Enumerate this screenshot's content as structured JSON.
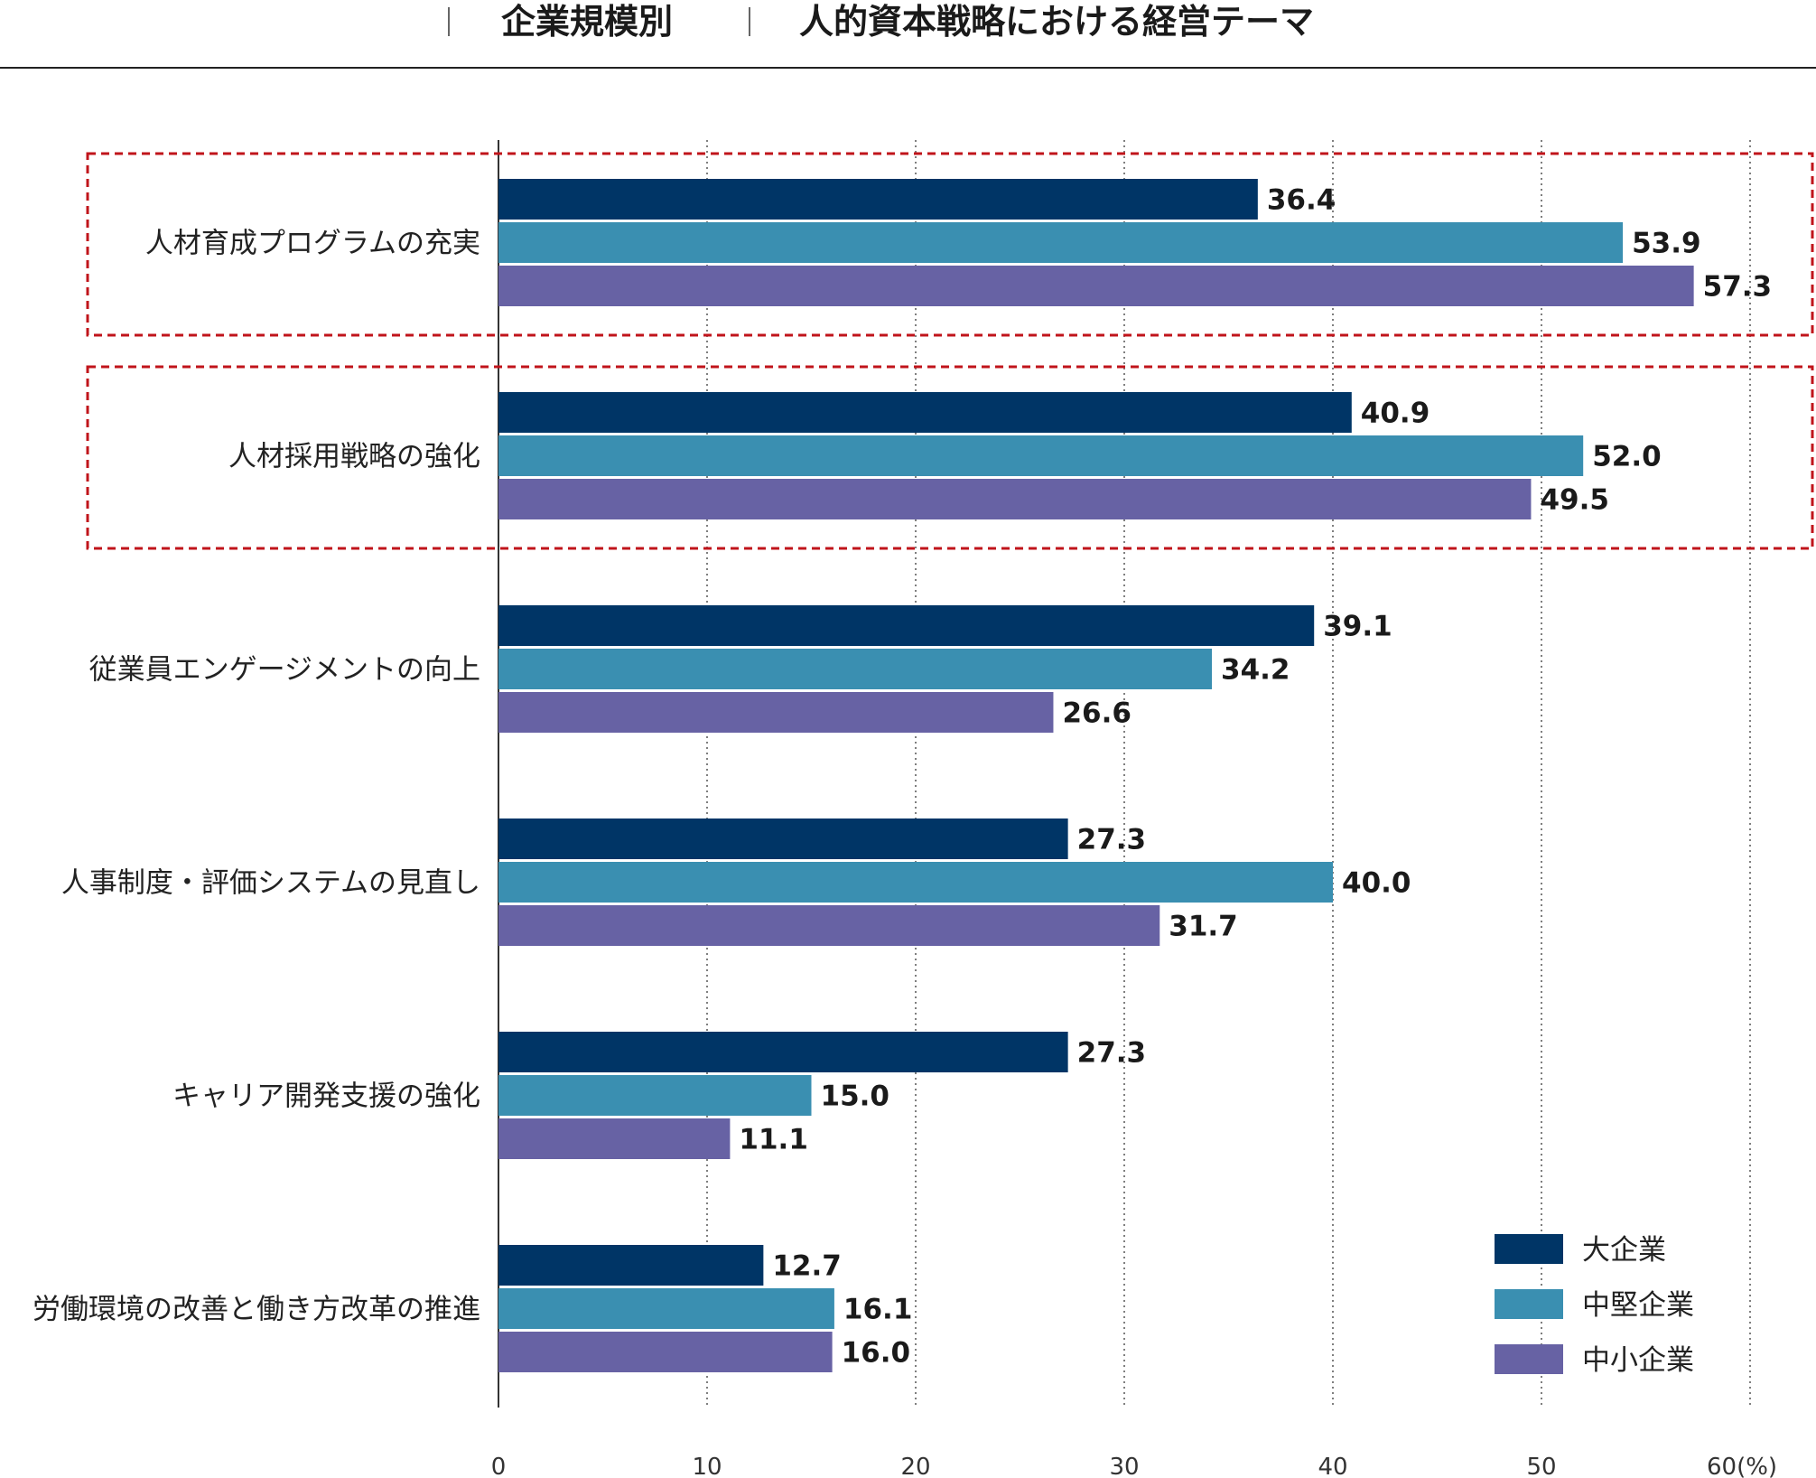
{
  "header": {
    "category_title": "企業規模別",
    "main_title": "人的資本戦略における経営テーマ"
  },
  "chart_data": {
    "type": "bar",
    "orientation": "horizontal",
    "categories": [
      "人材育成プログラムの充実",
      "人材採用戦略の強化",
      "従業員エンゲージメントの向上",
      "人事制度・評価システムの見直し",
      "キャリア開発支援の強化",
      "労働環境の改善と働き方改革の推進"
    ],
    "series": [
      {
        "name": "大企業",
        "color": "#003566",
        "values": [
          36.4,
          40.9,
          39.1,
          27.3,
          27.3,
          12.7
        ]
      },
      {
        "name": "中堅企業",
        "color": "#3a8fb1",
        "values": [
          53.9,
          52.0,
          34.2,
          40.0,
          15.0,
          16.1
        ]
      },
      {
        "name": "中小企業",
        "color": "#6762a4",
        "values": [
          57.3,
          49.5,
          26.6,
          31.7,
          11.1,
          16.0
        ]
      }
    ],
    "value_labels": [
      [
        "36.4",
        "53.9",
        "57.3"
      ],
      [
        "40.9",
        "52.0",
        "49.5"
      ],
      [
        "39.1",
        "34.2",
        "26.6"
      ],
      [
        "27.3",
        "40.0",
        "31.7"
      ],
      [
        "27.3",
        "15.0",
        "11.1"
      ],
      [
        "12.7",
        "16.1",
        "16.0"
      ]
    ],
    "xlim": [
      0,
      60
    ],
    "ticks": [
      0,
      10,
      20,
      30,
      40,
      50,
      60
    ],
    "tick_labels": [
      "0",
      "10",
      "20",
      "30",
      "40",
      "50",
      "60(%)"
    ],
    "grid": "vertical dotted",
    "highlighted_categories": [
      0,
      1
    ],
    "highlight_color": "#c0141b",
    "legend_position": "bottom-right"
  }
}
